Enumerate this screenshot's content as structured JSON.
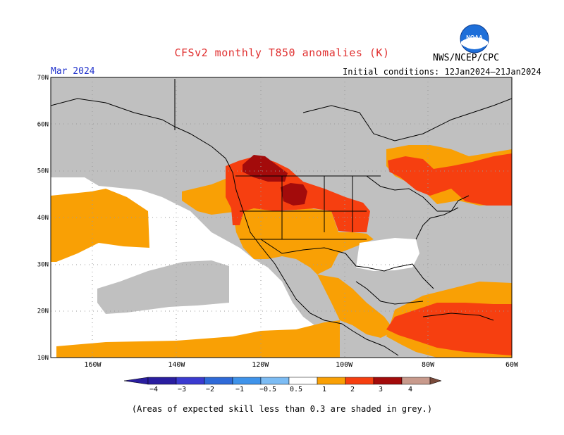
{
  "title": "CFSv2 monthly T850 anomalies (K)",
  "agency": "NWS/NCEP/CPC",
  "logo": {
    "text": "NOAA",
    "color": "#1e6fd9"
  },
  "target_month": "Mar 2024",
  "initial_conditions": "Initial conditions: 12Jan2024–21Jan2024",
  "footnote": "(Areas of expected skill less than 0.3 are shaded in grey.)",
  "map": {
    "lon_range": [
      -170,
      -60
    ],
    "lat_range": [
      10,
      70
    ],
    "lat_labels": [
      "10N",
      "20N",
      "30N",
      "40N",
      "50N",
      "60N",
      "70N"
    ],
    "lat_values": [
      10,
      20,
      30,
      40,
      50,
      60,
      70
    ],
    "lon_labels": [
      "160W",
      "140W",
      "120W",
      "100W",
      "80W",
      "60W"
    ],
    "lon_values": [
      -160,
      -140,
      -120,
      -100,
      -80,
      -60
    ],
    "colors": {
      "grey_low_skill": "#c0c0c0",
      "orange": "#f9a005",
      "red_orange": "#f63f10",
      "dark_red": "#a30b0b",
      "white": "#ffffff"
    }
  },
  "colorbar": {
    "labels": [
      "−4",
      "−3",
      "−2",
      "−1",
      "−0.5",
      "0.5",
      "1",
      "2",
      "3",
      "4"
    ],
    "colors": [
      "#2a1ea0",
      "#3b3bd0",
      "#2f6ad8",
      "#3f93ea",
      "#7cbcf4",
      "#ffffff",
      "#f9a005",
      "#f63f10",
      "#a30b0b",
      "#c89a8c",
      "#7a4a3a"
    ]
  }
}
